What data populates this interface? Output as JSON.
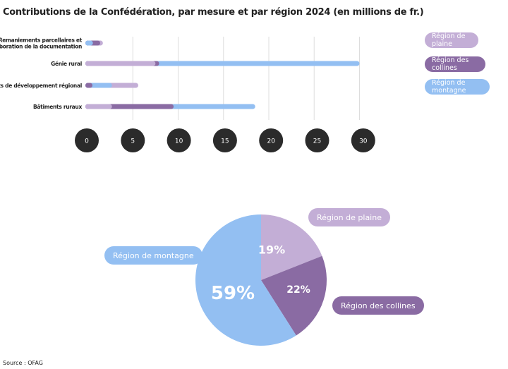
{
  "title": "Contributions de la Confédération, par mesure et par région 2024 (en millions de fr.)",
  "source": "Source : OFAG",
  "colors": {
    "plaine": "#c3aed6",
    "collines": "#8a6ba3",
    "montagne": "#93bff2",
    "tick": "#2b2b2b"
  },
  "chart_data": [
    {
      "type": "bar",
      "orientation": "horizontal",
      "overlapping": true,
      "categories": [
        "Remaniements parcellaires et élaboration de la documentation",
        "Génie rural",
        "Projets de développement régional",
        "Bâtiments ruraux"
      ],
      "series": [
        {
          "name": "Région de plaine",
          "values": [
            1.7,
            7.5,
            5.6,
            2.7
          ]
        },
        {
          "name": "Région des collines",
          "values": [
            1.4,
            7.9,
            0.4,
            9.5
          ]
        },
        {
          "name": "Région de montagne",
          "values": [
            0.6,
            30.0,
            2.7,
            18.5
          ]
        }
      ],
      "xticks": [
        "0",
        "5",
        "10",
        "15",
        "20",
        "25",
        "30"
      ],
      "xlim": [
        0,
        30
      ],
      "grid": true,
      "legend": "right"
    },
    {
      "type": "pie",
      "slices": [
        {
          "name": "Région de plaine",
          "value": 19,
          "label": "19%"
        },
        {
          "name": "Région des collines",
          "value": 22,
          "label": "22%"
        },
        {
          "name": "Région de montagne",
          "value": 59,
          "label": "59%"
        }
      ]
    }
  ]
}
